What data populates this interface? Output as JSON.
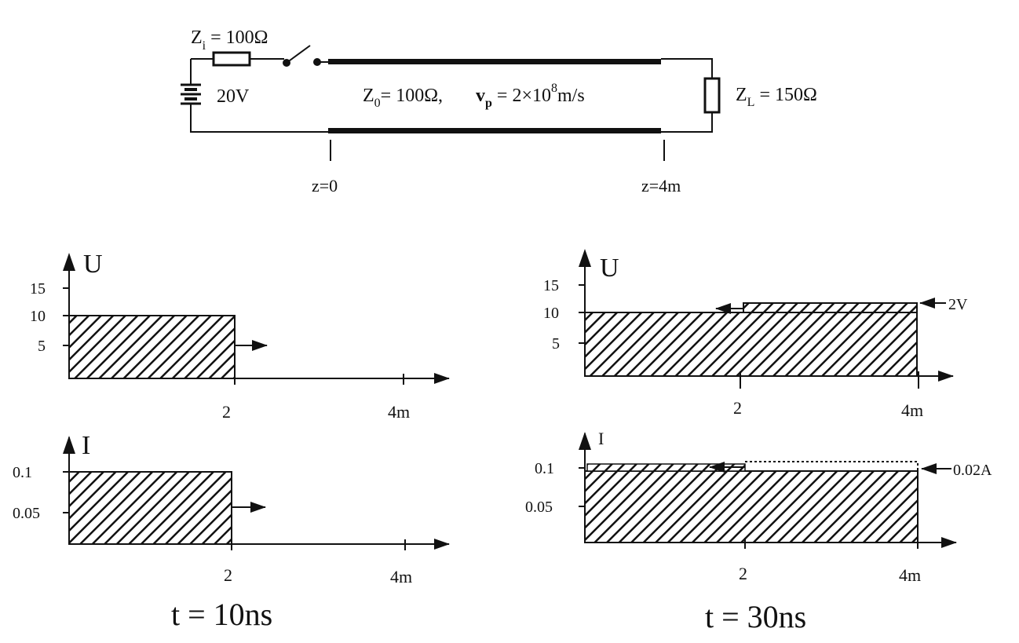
{
  "circuit": {
    "zi_label": "Z",
    "zi_sub": "i",
    "zi_value": " = 100Ω",
    "source_label": "20V",
    "line_z0_label": "Z",
    "line_z0_sub": "0",
    "line_z0_value": "= 100Ω,",
    "line_vp_label": "v",
    "line_vp_sub": "p",
    "line_vp_value": " = 2×10",
    "line_vp_exp": "8",
    "line_vp_unit": "m/s",
    "zl_label": "Z",
    "zl_sub": "L",
    "zl_value": " = 150Ω",
    "z_start_label": "z=0",
    "z_end_label": "z=4m"
  },
  "plots": {
    "left_time": "t = 10ns",
    "right_time": "t = 30ns",
    "u_axis": "U",
    "i_axis": "I",
    "u_ticks": [
      "15",
      "10",
      "5"
    ],
    "i_ticks": [
      "0.1",
      "0.05"
    ],
    "x_tick_mid": "2",
    "x_tick_end": "4m",
    "reflected_u_label": "2V",
    "reflected_i_label": "0.02A"
  },
  "chart_data": [
    {
      "type": "area",
      "title": "",
      "xlabel": "",
      "ylabel": "U",
      "x": [
        0,
        2
      ],
      "y": [
        10,
        10
      ],
      "ylim": [
        0,
        17
      ],
      "xlim": [
        0,
        4
      ],
      "annotation": "t = 10ns"
    },
    {
      "type": "area",
      "title": "",
      "xlabel": "",
      "ylabel": "I",
      "x": [
        0,
        2
      ],
      "y": [
        0.1,
        0.1
      ],
      "ylim": [
        0,
        0.13
      ],
      "xlim": [
        0,
        4
      ],
      "annotation": "t = 10ns"
    },
    {
      "type": "area",
      "title": "",
      "xlabel": "",
      "ylabel": "U",
      "x": [
        0,
        2,
        2,
        4
      ],
      "y": [
        10,
        10,
        12,
        12
      ],
      "ylim": [
        0,
        17
      ],
      "xlim": [
        0,
        4
      ],
      "annotation": "t = 30ns",
      "reflected": "2V"
    },
    {
      "type": "area",
      "title": "",
      "xlabel": "",
      "ylabel": "I",
      "x": [
        0,
        2,
        2,
        4
      ],
      "y": [
        0.1,
        0.1,
        0.08,
        0.08
      ],
      "ylim": [
        0,
        0.13
      ],
      "xlim": [
        0,
        4
      ],
      "annotation": "t = 30ns",
      "reflected": "0.02A"
    }
  ]
}
